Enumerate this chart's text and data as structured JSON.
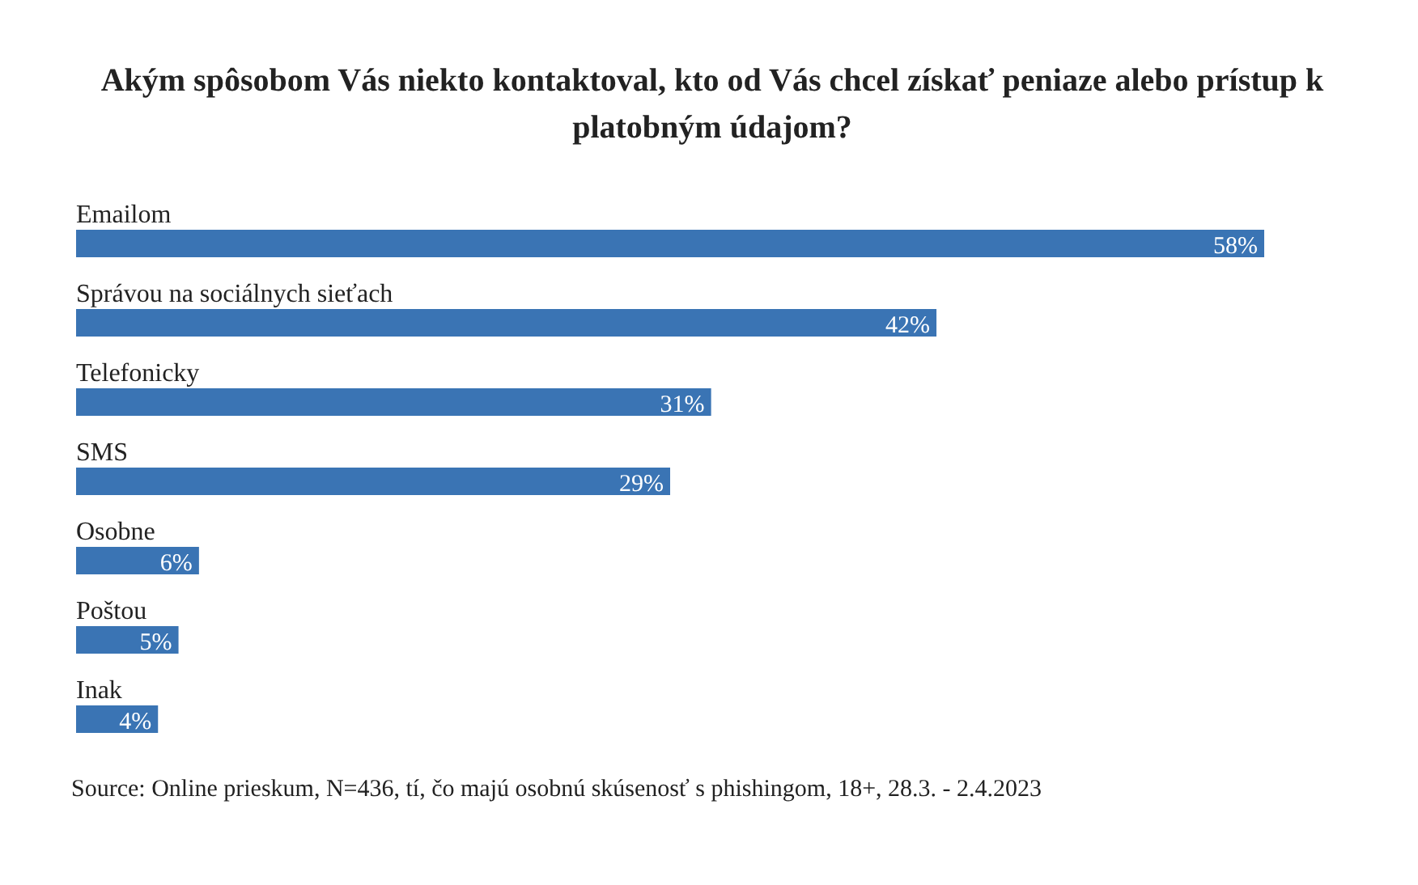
{
  "chart_data": {
    "type": "bar",
    "orientation": "horizontal",
    "title": "Akým spôsobom Vás niekto kontaktoval, kto od Vás chcel získať peniaze alebo prístup k platobným údajom?",
    "categories": [
      "Emailom",
      "Správou na sociálnych sieťach",
      "Telefonicky",
      "SMS",
      "Osobne",
      "Poštou",
      "Inak"
    ],
    "values": [
      58,
      42,
      31,
      29,
      6,
      5,
      4
    ],
    "value_labels": [
      "58%",
      "42%",
      "31%",
      "29%",
      "6%",
      "5%",
      "4%"
    ],
    "color": "#3a74b4",
    "annotations": [
      "Source: Online prieskum, N=436, tí, čo majú osobnú skúsenosť s phishingom, 18+, 28.3. - 2.4.2023"
    ]
  }
}
